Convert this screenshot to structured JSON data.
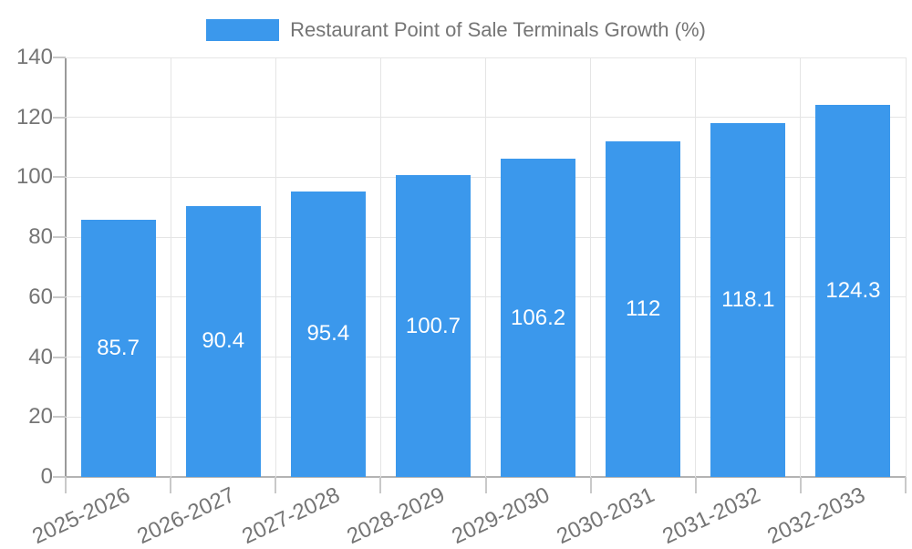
{
  "chart_data": {
    "type": "bar",
    "title": "Restaurant Point of Sale Terminals Growth (%)",
    "legend_position": "top",
    "legend": [
      {
        "label": "Restaurant Point of Sale Terminals Growth (%)",
        "color": "#3b98ec"
      }
    ],
    "categories": [
      "2025-2026",
      "2026-2027",
      "2027-2028",
      "2028-2029",
      "2029-2030",
      "2030-2031",
      "2031-2032",
      "2032-2033"
    ],
    "values": [
      85.7,
      90.4,
      95.4,
      100.7,
      106.2,
      112,
      118.1,
      124.3
    ],
    "xlabel": "",
    "ylabel": "",
    "ylim": [
      0,
      140
    ],
    "yticks": [
      0,
      20,
      40,
      60,
      80,
      100,
      120,
      140
    ],
    "grid": true,
    "bar_color": "#3b98ec",
    "value_label_color": "#ffffff",
    "axis_text_color": "#757575",
    "value_labels_inside_bars": true,
    "x_label_rotation_deg": -25
  }
}
